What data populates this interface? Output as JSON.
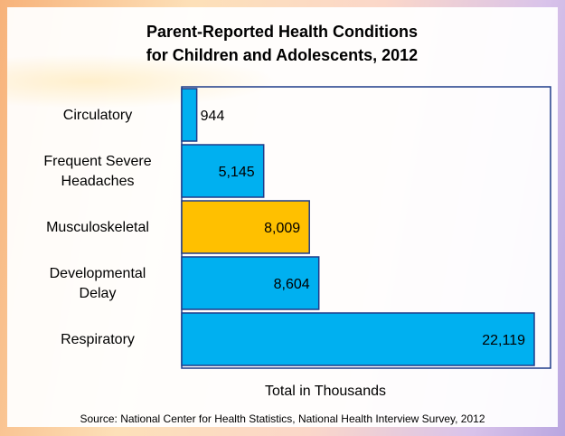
{
  "chart_data": {
    "type": "barh",
    "title": "Parent-Reported Health Conditions\nfor Children and Adolescents, 2012",
    "categories": [
      "Circulatory",
      "Frequent Severe Headaches",
      "Musculoskeletal",
      "Developmental Delay",
      "Respiratory"
    ],
    "values": [
      944,
      5145,
      8009,
      8604,
      22119
    ],
    "value_labels": [
      "944",
      "5,145",
      "8,009",
      "8,604",
      "22,119"
    ],
    "colors": [
      "#00b0f0",
      "#00b0f0",
      "#ffc000",
      "#00b0f0",
      "#00b0f0"
    ],
    "xlabel": "Total in Thousands",
    "source": "Source: National Center for Health Statistics, National Health Interview Survey, 2012"
  }
}
